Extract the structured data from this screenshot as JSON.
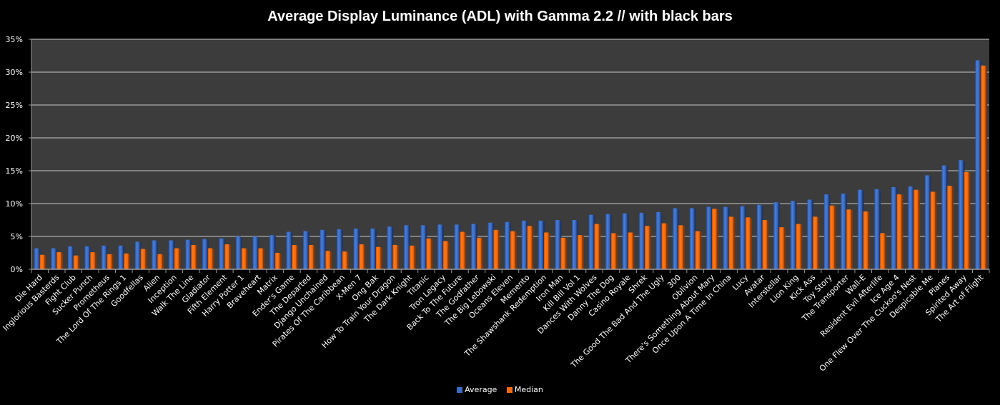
{
  "chart_data": {
    "type": "bar",
    "title": "Average Display Luminance (ADL) with Gamma 2.2 // with black bars",
    "xlabel": "",
    "ylabel": "",
    "ylim": [
      0,
      35
    ],
    "yticks": [
      "0%",
      "5%",
      "10%",
      "15%",
      "20%",
      "25%",
      "30%",
      "35%"
    ],
    "ytick_values": [
      0,
      5,
      10,
      15,
      20,
      25,
      30,
      35
    ],
    "grid": true,
    "legend_position": "bottom",
    "categories": [
      "Die Hard",
      "Inglorious Basterds",
      "Fight Club",
      "Sucker Punch",
      "Prometheus",
      "The Lord Of The Rings 1",
      "Goodfellas",
      "Alien",
      "Inception",
      "Walk The Line",
      "Gladiator",
      "Fifth Element",
      "Harry Potter 1",
      "Braveheart",
      "Matrix",
      "Ender's Game",
      "The Departed",
      "Django Unchained",
      "Pirates Of The Caribbean",
      "X-Men 7",
      "Ong Bak",
      "How To Train Your Dragon",
      "The Dark Knight",
      "Titanic",
      "Tron Legacy",
      "Back To The Future",
      "The Godfather",
      "The Big Lebowski",
      "Oceans Eleven",
      "Memento",
      "The Shawshank Redemption",
      "Iron Man",
      "Kill Bill Vol 1",
      "Dances With Wolves",
      "Danny The Dog",
      "Casino Royale",
      "Shrek",
      "The Good The Bad And The Ugly",
      "300",
      "Oblivion",
      "There's Something About Mary",
      "Once Upon A Time In China",
      "Lucy",
      "Avatar",
      "Interstellar",
      "Lion King",
      "Kick Ass",
      "Toy Story",
      "The Transporter",
      "Wall-E",
      "Resident Evil Afterlife",
      "Ice Age 4",
      "One Flew Over The Cuckoo's Nest",
      "Despicable Me",
      "Planes",
      "Spirited Away",
      "The Art of Flight"
    ],
    "series": [
      {
        "name": "Average",
        "color": "#3A6BC4",
        "values": [
          3.2,
          3.2,
          3.5,
          3.5,
          3.6,
          3.6,
          4.2,
          4.4,
          4.4,
          4.5,
          4.6,
          4.7,
          5.0,
          5.0,
          5.2,
          5.7,
          5.8,
          6.0,
          6.1,
          6.2,
          6.2,
          6.5,
          6.7,
          6.7,
          6.8,
          6.8,
          6.9,
          7.1,
          7.2,
          7.4,
          7.4,
          7.5,
          7.5,
          8.3,
          8.4,
          8.5,
          8.6,
          8.7,
          9.3,
          9.3,
          9.5,
          9.5,
          9.6,
          9.8,
          10.2,
          10.4,
          10.6,
          11.4,
          11.5,
          12.1,
          12.2,
          12.5,
          12.6,
          14.3,
          15.8,
          16.6,
          31.8
        ]
      },
      {
        "name": "Median",
        "color": "#F26A0F",
        "values": [
          2.2,
          2.6,
          2.1,
          2.6,
          2.3,
          2.4,
          3.1,
          2.3,
          3.2,
          3.7,
          3.2,
          3.8,
          3.2,
          3.2,
          2.5,
          3.7,
          3.7,
          2.8,
          2.7,
          3.8,
          3.4,
          3.7,
          3.6,
          4.7,
          4.3,
          5.7,
          4.8,
          6.0,
          5.8,
          6.6,
          5.6,
          4.8,
          5.2,
          6.9,
          5.5,
          5.6,
          6.6,
          7.0,
          6.7,
          5.8,
          9.2,
          8.0,
          7.9,
          7.5,
          6.4,
          6.9,
          8.0,
          9.7,
          9.1,
          8.8,
          5.5,
          11.4,
          12.1,
          11.8,
          12.7,
          14.8,
          31.0
        ]
      }
    ]
  }
}
